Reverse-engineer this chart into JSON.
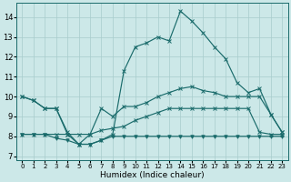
{
  "xlabel": "Humidex (Indice chaleur)",
  "bg_color": "#cce8e8",
  "line_color": "#1a6b6b",
  "grid_color": "#a8cccc",
  "xlim": [
    -0.5,
    23.5
  ],
  "ylim": [
    6.8,
    14.7
  ],
  "yticks": [
    7,
    8,
    9,
    10,
    11,
    12,
    13,
    14
  ],
  "xticks": [
    0,
    1,
    2,
    3,
    4,
    5,
    6,
    7,
    8,
    9,
    10,
    11,
    12,
    13,
    14,
    15,
    16,
    17,
    18,
    19,
    20,
    21,
    22,
    23
  ],
  "curve_peak": [
    10.0,
    9.8,
    9.4,
    9.4,
    8.1,
    7.6,
    7.6,
    7.8,
    8.1,
    11.3,
    12.5,
    12.7,
    13.0,
    12.8,
    14.3,
    13.8,
    13.2,
    12.5,
    11.9,
    10.7,
    10.2,
    10.4,
    9.1,
    8.2
  ],
  "curve_upper_diag": [
    10.0,
    9.8,
    9.4,
    9.4,
    8.2,
    7.6,
    8.1,
    9.4,
    9.0,
    9.5,
    9.5,
    9.7,
    10.0,
    10.2,
    10.4,
    10.5,
    10.3,
    10.2,
    10.0,
    10.0,
    10.0,
    10.0,
    9.1,
    8.2
  ],
  "curve_lower_diag": [
    8.1,
    8.1,
    8.1,
    8.1,
    8.1,
    8.1,
    8.1,
    8.3,
    8.4,
    8.5,
    8.8,
    9.0,
    9.2,
    9.4,
    9.4,
    9.4,
    9.4,
    9.4,
    9.4,
    9.4,
    9.4,
    8.2,
    8.1,
    8.1
  ],
  "curve_bottom": [
    8.1,
    8.1,
    8.1,
    7.9,
    7.8,
    7.6,
    7.6,
    7.8,
    8.0,
    8.0,
    8.0,
    8.0,
    8.0,
    8.0,
    8.0,
    8.0,
    8.0,
    8.0,
    8.0,
    8.0,
    8.0,
    8.0,
    8.0,
    8.0
  ]
}
